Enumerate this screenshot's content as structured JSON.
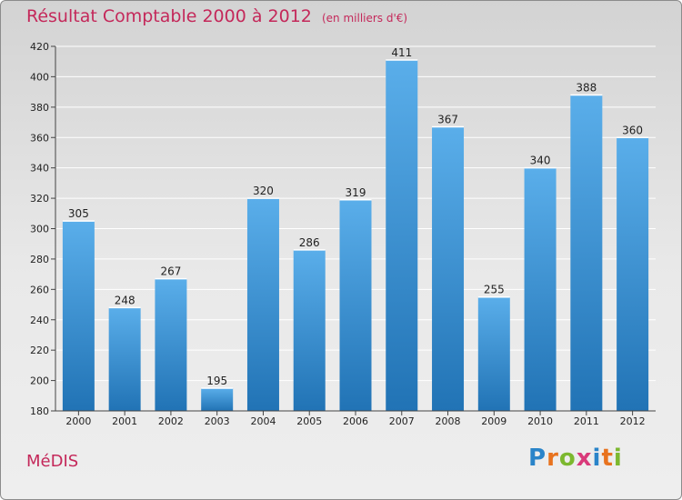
{
  "chart_data": {
    "type": "bar",
    "title": "Résultat Comptable 2000 à 2012",
    "unit": "(en milliers d'€)",
    "categories": [
      "2000",
      "2001",
      "2002",
      "2003",
      "2004",
      "2005",
      "2006",
      "2007",
      "2008",
      "2009",
      "2010",
      "2011",
      "2012"
    ],
    "values": [
      305,
      248,
      267,
      195,
      320,
      286,
      319,
      411,
      367,
      255,
      340,
      388,
      360
    ],
    "ylim": [
      180,
      420
    ],
    "yticks": [
      180,
      200,
      220,
      240,
      260,
      280,
      300,
      320,
      340,
      360,
      380,
      400,
      420
    ],
    "grid": true,
    "xlabel": "",
    "ylabel": ""
  },
  "commune": "MéDIS",
  "logo": {
    "letters": [
      "P",
      "r",
      "o",
      "x",
      "i",
      "t",
      "i"
    ],
    "colors": [
      "#2a84c9",
      "#e8731f",
      "#7cb82f",
      "#d93a7a",
      "#2a84c9",
      "#e8731f",
      "#7cb82f"
    ]
  }
}
